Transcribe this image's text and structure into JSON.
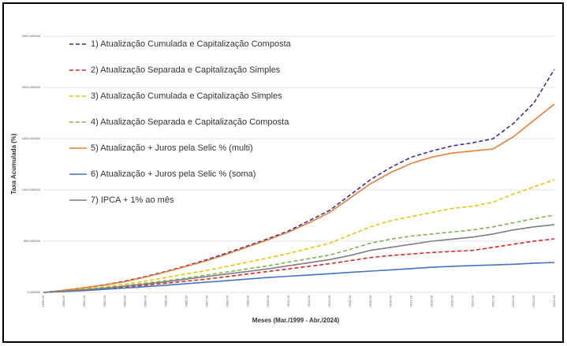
{
  "chart_data": {
    "type": "line",
    "y_label": "Taxa Acumulada (%)",
    "x_label": "Meses (Mar./1999 - Abr./2024)",
    "categories": [
      "1999.03",
      "2000.03",
      "2001.03",
      "2002.03",
      "2003.03",
      "2004.03",
      "2005.03",
      "2006.03",
      "2007.03",
      "2008.03",
      "2009.03",
      "2010.03",
      "2011.03",
      "2012.03",
      "2013.03",
      "2014.03",
      "2015.03",
      "2016.03",
      "2017.03",
      "2018.03",
      "2019.03",
      "2020.03",
      "2021.03",
      "2022.03",
      "2023.03",
      "2024.04"
    ],
    "ylim": [
      0,
      2500
    ],
    "yticks": [
      {
        "value": 0,
        "label": "0,000000"
      },
      {
        "value": 500,
        "label": "500,000000"
      },
      {
        "value": 1000,
        "label": "1000,000000"
      },
      {
        "value": 1500,
        "label": "1500,000000"
      },
      {
        "value": 2000,
        "label": "2000,000000"
      },
      {
        "value": 2500,
        "label": "2500,000000"
      }
    ],
    "grid": true,
    "series": [
      {
        "name": "1) Atualização Cumulada e Capitalização Composta",
        "color": "#3b2aa0",
        "style": "dashed",
        "values": [
          0,
          20,
          45,
          75,
          110,
          155,
          205,
          260,
          320,
          385,
          455,
          525,
          600,
          700,
          800,
          950,
          1100,
          1220,
          1320,
          1380,
          1430,
          1460,
          1500,
          1650,
          1850,
          2177
        ]
      },
      {
        "name": "2) Atualização Separada e Capitalização Simples",
        "color": "#e8241c",
        "style": "dashed",
        "values": [
          0,
          10,
          22,
          36,
          52,
          70,
          90,
          110,
          130,
          155,
          180,
          205,
          230,
          255,
          280,
          310,
          340,
          360,
          375,
          390,
          400,
          410,
          440,
          470,
          500,
          523
        ]
      },
      {
        "name": "3) Atualização Cumulada e Capitalização Simples",
        "color": "#f2c200",
        "style": "dashed",
        "values": [
          0,
          15,
          35,
          55,
          80,
          110,
          145,
          180,
          215,
          255,
          295,
          335,
          380,
          430,
          480,
          560,
          640,
          700,
          740,
          780,
          820,
          840,
          880,
          960,
          1030,
          1100
        ]
      },
      {
        "name": "4) Atualização Separada e Capitalização Composta",
        "color": "#7ab648",
        "style": "dashed",
        "values": [
          0,
          12,
          28,
          45,
          65,
          90,
          115,
          140,
          170,
          200,
          230,
          260,
          295,
          330,
          365,
          420,
          480,
          520,
          550,
          570,
          590,
          610,
          640,
          680,
          720,
          754
        ]
      },
      {
        "name": "5) Atualização + Juros pela Selic % (multi)",
        "color": "#ed7d31",
        "style": "solid",
        "values": [
          0,
          20,
          45,
          72,
          105,
          150,
          200,
          255,
          310,
          375,
          445,
          515,
          590,
          680,
          780,
          920,
          1060,
          1170,
          1260,
          1320,
          1360,
          1380,
          1400,
          1520,
          1680,
          1838
        ]
      },
      {
        "name": "6) Atualização + Juros pela Selic % (soma)",
        "color": "#4472c4",
        "style": "solid",
        "values": [
          0,
          8,
          18,
          30,
          42,
          56,
          70,
          85,
          100,
          115,
          130,
          145,
          158,
          170,
          182,
          195,
          208,
          220,
          232,
          245,
          255,
          262,
          268,
          275,
          285,
          292
        ]
      },
      {
        "name": "7) IPCA + 1% ao mês",
        "color": "#7f7f7f",
        "style": "solid",
        "values": [
          0,
          12,
          26,
          42,
          60,
          82,
          105,
          130,
          155,
          180,
          205,
          230,
          260,
          290,
          320,
          360,
          410,
          440,
          470,
          500,
          520,
          540,
          570,
          610,
          640,
          661
        ]
      }
    ]
  }
}
